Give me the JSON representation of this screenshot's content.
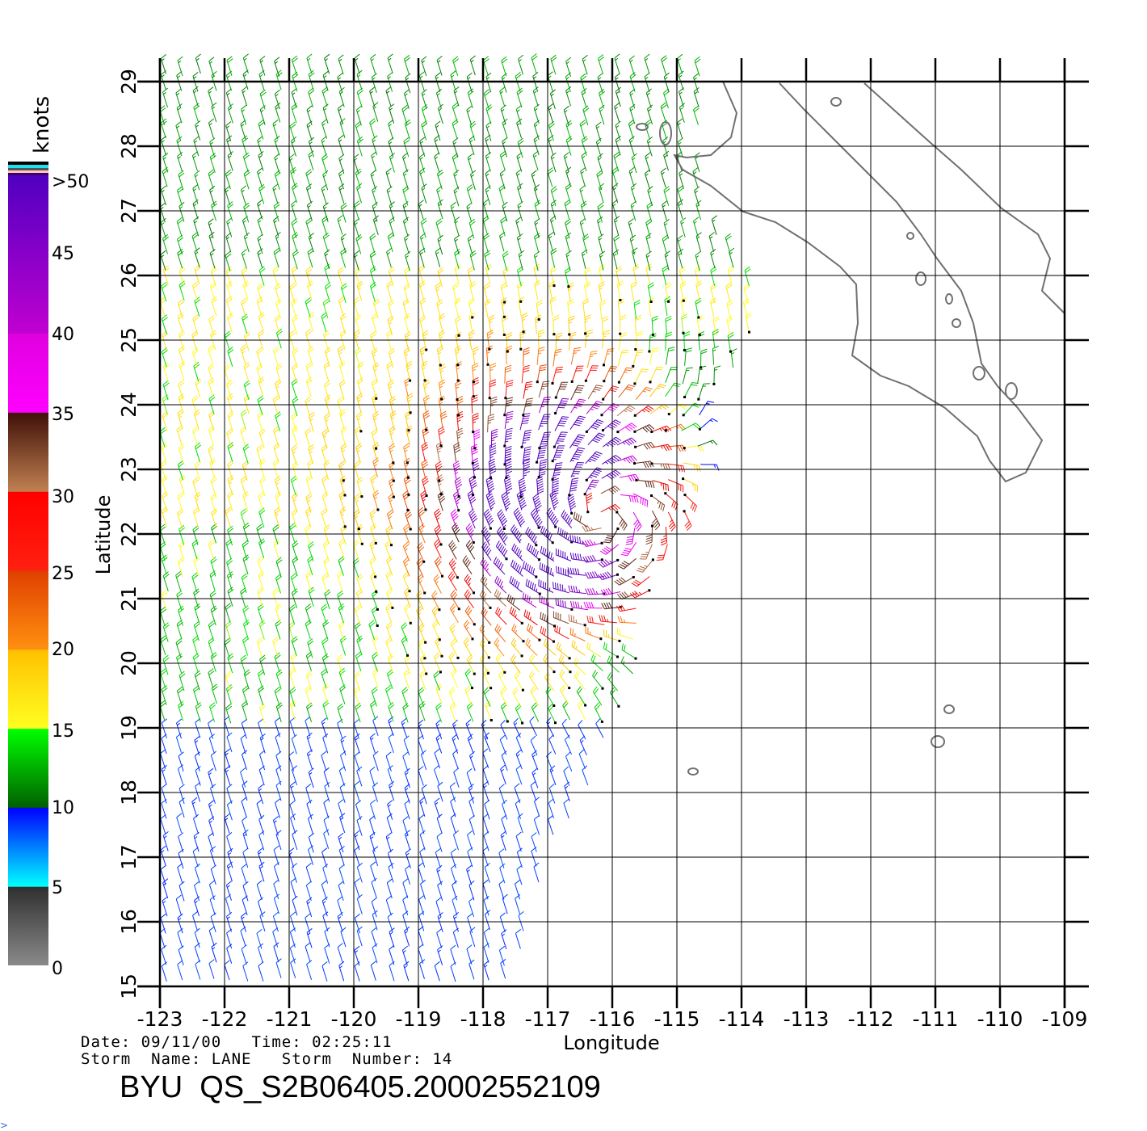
{
  "colorbar": {
    "unit_label": "knots",
    "tick_labels": [
      ">50",
      "45",
      "40",
      "35",
      "30",
      "25",
      "20",
      "15",
      "10",
      "5",
      "0"
    ],
    "tick_values": [
      50,
      45,
      40,
      35,
      30,
      25,
      20,
      15,
      10,
      5,
      0
    ]
  },
  "axes": {
    "xlabel": "Longitude",
    "ylabel": "Latitude",
    "x_ticks": [
      "-123",
      "-122",
      "-121",
      "-120",
      "-119",
      "-118",
      "-117",
      "-116",
      "-115",
      "-114",
      "-113",
      "-112",
      "-111",
      "-110",
      "-109"
    ],
    "y_ticks": [
      "15",
      "16",
      "17",
      "18",
      "19",
      "20",
      "21",
      "22",
      "23",
      "24",
      "25",
      "26",
      "27",
      "28",
      "29"
    ],
    "xlim": [
      -123,
      -109
    ],
    "ylim": [
      15,
      29
    ]
  },
  "info": {
    "date_line": "Date: 09/11/00   Time: 02:25:11",
    "storm_line": "Storm  Name: LANE   Storm  Number: 14",
    "title": "BYU  QS_S2B06405.20002552109"
  },
  "chart_data": {
    "type": "wind-barb-map",
    "variable": "wind speed (knots)",
    "storm_center": {
      "lon": -116.3,
      "lat": 22.3
    },
    "storm_max_wind_knots": 42,
    "background_wind_knots": {
      "north_of_26": 17,
      "lat_22_26": 21,
      "lat_19_22": 19,
      "south_of_19": 12
    },
    "grid_spacing_deg": 0.25,
    "colors": {
      "0": "#8a8a8a",
      "5": "#00ffff",
      "10": "#0050ff",
      "15": "#006600",
      "20": "#ffff00",
      "25": "#ff8000",
      "30": "#ff1010",
      "35": "#c08050",
      "40": "#ff00ff",
      "45": "#a000c0",
      "50": "#5000c0"
    }
  }
}
